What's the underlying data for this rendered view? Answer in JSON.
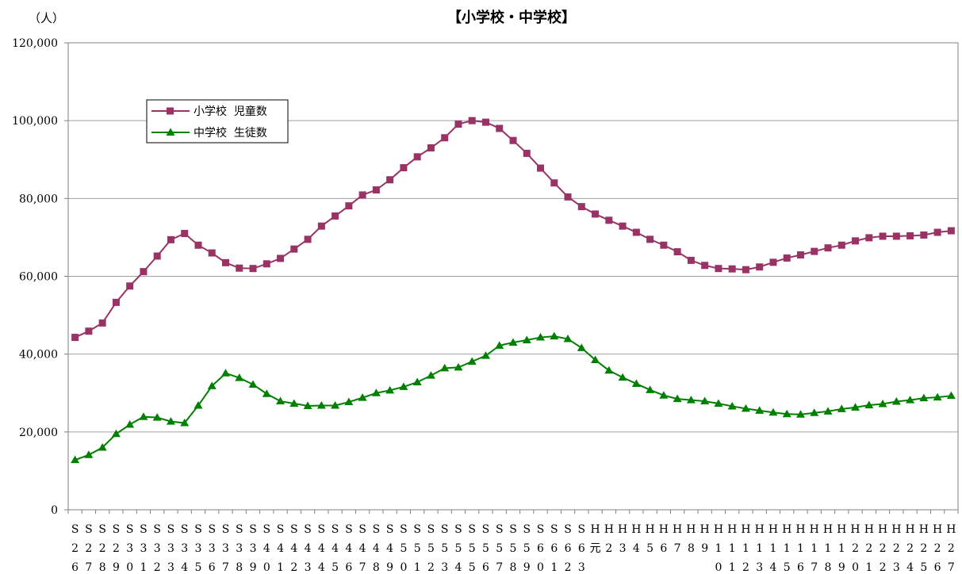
{
  "chart_data": {
    "type": "line",
    "title": "【小学校・中学校】",
    "unit_label": "（人）",
    "ylim": [
      0,
      120000
    ],
    "y_ticks": [
      "0",
      "20,000",
      "40,000",
      "60,000",
      "80,000",
      "100,000",
      "120,000"
    ],
    "y_tick_values": [
      0,
      20000,
      40000,
      60000,
      80000,
      100000,
      120000
    ],
    "grid": true,
    "legend_position": "upper-left",
    "categories": [
      "S26",
      "S27",
      "S28",
      "S29",
      "S30",
      "S31",
      "S32",
      "S33",
      "S34",
      "S35",
      "S36",
      "S37",
      "S38",
      "S39",
      "S40",
      "S41",
      "S42",
      "S43",
      "S44",
      "S45",
      "S46",
      "S47",
      "S48",
      "S49",
      "S50",
      "S51",
      "S52",
      "S53",
      "S54",
      "S55",
      "S56",
      "S57",
      "S58",
      "S59",
      "S60",
      "S61",
      "S62",
      "S63",
      "H元",
      "H2",
      "H3",
      "H4",
      "H5",
      "H6",
      "H7",
      "H8",
      "H9",
      "H10",
      "H11",
      "H12",
      "H13",
      "H14",
      "H15",
      "H16",
      "H17",
      "H18",
      "H19",
      "H20",
      "H21",
      "H22",
      "H23",
      "H24",
      "H25",
      "H26",
      "H27"
    ],
    "series": [
      {
        "name": "小学校  児童数",
        "color": "#993366",
        "marker": "square",
        "values": [
          44300,
          45900,
          48000,
          53300,
          57500,
          61200,
          65200,
          69400,
          71000,
          68000,
          66000,
          63500,
          62100,
          62000,
          63200,
          64600,
          67000,
          69500,
          72900,
          75500,
          78100,
          80900,
          82200,
          84800,
          87900,
          90700,
          93000,
          95600,
          99100,
          100000,
          99600,
          98000,
          94900,
          91600,
          87800,
          84000,
          80400,
          77900,
          76000,
          74400,
          72900,
          71300,
          69500,
          68000,
          66300,
          64100,
          62800,
          62000,
          61900,
          61700,
          62400,
          63600,
          64700,
          65500,
          66400,
          67300,
          68000,
          69100,
          69900,
          70300,
          70300,
          70400,
          70600,
          71300,
          71700
        ]
      },
      {
        "name": "中学校  生徒数",
        "color": "#008000",
        "marker": "triangle",
        "values": [
          12800,
          14100,
          16000,
          19500,
          21900,
          23900,
          23700,
          22700,
          22300,
          26800,
          31800,
          35100,
          33900,
          32200,
          29800,
          27900,
          27300,
          26700,
          26800,
          26800,
          27700,
          28800,
          30000,
          30700,
          31600,
          32800,
          34500,
          36400,
          36600,
          38100,
          39600,
          42200,
          43000,
          43600,
          44300,
          44600,
          43900,
          41600,
          38500,
          35800,
          34000,
          32400,
          30800,
          29400,
          28500,
          28200,
          27900,
          27300,
          26600,
          26000,
          25500,
          25000,
          24600,
          24500,
          24900,
          25300,
          25900,
          26300,
          26900,
          27200,
          27800,
          28200,
          28700,
          28900,
          29300
        ]
      }
    ]
  }
}
